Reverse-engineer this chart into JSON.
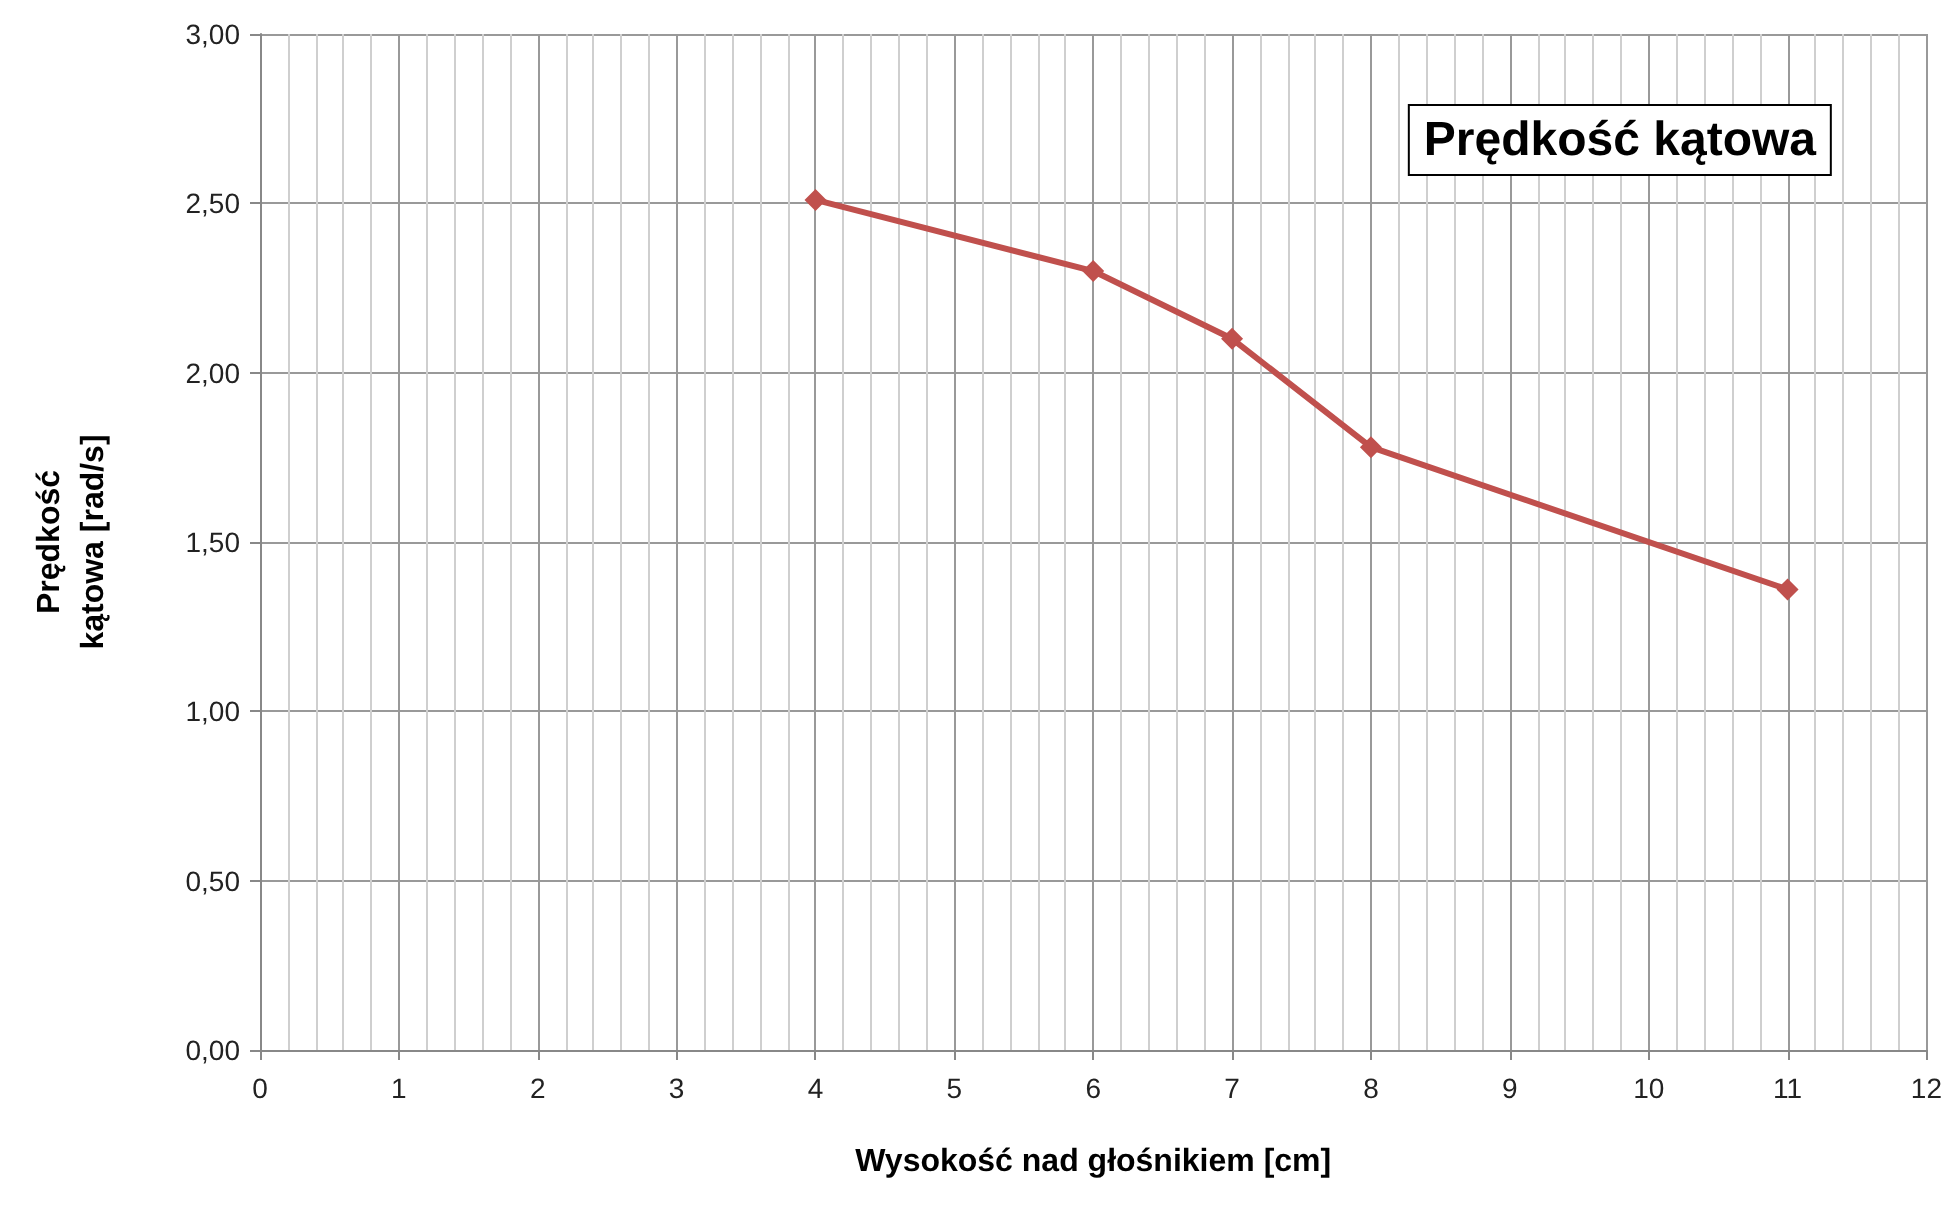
{
  "chart_data": {
    "type": "line",
    "title": "Prędkość kątowa",
    "xlabel": "Wysokość nad głośnikiem [cm]",
    "ylabel": "Prędkość kątowa [rad/s]",
    "x": [
      4,
      6,
      7,
      8,
      11
    ],
    "series": [
      {
        "color": "#c0504d",
        "values": [
          2.51,
          2.3,
          2.1,
          1.78,
          1.36
        ]
      }
    ],
    "xlim": [
      0,
      12
    ],
    "xticks": [
      0,
      1,
      2,
      3,
      4,
      5,
      6,
      7,
      8,
      9,
      10,
      11,
      12
    ],
    "ylim": [
      0,
      3
    ],
    "yticks": [
      {
        "value": 0,
        "label": "0,00"
      },
      {
        "value": 0.5,
        "label": "0,50"
      },
      {
        "value": 1,
        "label": "1,00"
      },
      {
        "value": 1.5,
        "label": "1,50"
      },
      {
        "value": 2,
        "label": "2,00"
      },
      {
        "value": 2.5,
        "label": "2,50"
      },
      {
        "value": 3,
        "label": "3,00"
      }
    ],
    "grid": true,
    "marker": "diamond",
    "line_style": "solid"
  }
}
